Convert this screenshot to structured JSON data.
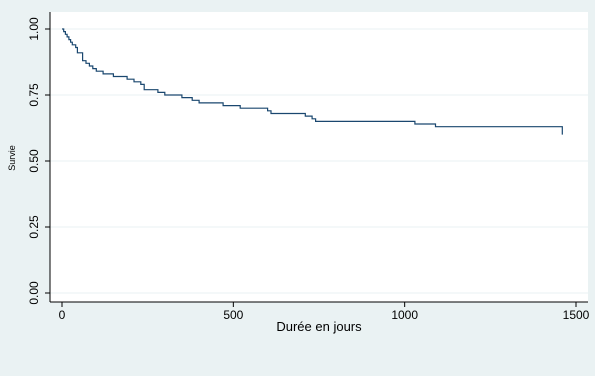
{
  "chart_data": {
    "type": "line",
    "title": "",
    "xlabel": "Durée en jours",
    "ylabel": "Survie",
    "xlim": [
      0,
      1500
    ],
    "ylim": [
      0,
      1
    ],
    "x_ticks": [
      0,
      500,
      1000,
      1500
    ],
    "x_tick_labels": [
      "0",
      "500",
      "1000",
      "1500"
    ],
    "y_ticks": [
      0,
      0.25,
      0.5,
      0.75,
      1
    ],
    "y_tick_labels": [
      "0.00",
      "0.25",
      "0.50",
      "0.75",
      "1.00"
    ],
    "grid": true,
    "legend": "none",
    "line_color": "#1a476f",
    "series": [
      {
        "step": true,
        "x": [
          0,
          5,
          10,
          15,
          20,
          25,
          30,
          40,
          45,
          60,
          70,
          80,
          90,
          100,
          120,
          140,
          150,
          190,
          210,
          230,
          240,
          280,
          300,
          340,
          350,
          380,
          400,
          460,
          470,
          510,
          520,
          600,
          610,
          700,
          710,
          730,
          740,
          1020,
          1030,
          1080,
          1090,
          1460
        ],
        "y": [
          1.0,
          0.99,
          0.98,
          0.97,
          0.96,
          0.95,
          0.94,
          0.93,
          0.91,
          0.88,
          0.87,
          0.86,
          0.85,
          0.84,
          0.83,
          0.83,
          0.82,
          0.81,
          0.8,
          0.79,
          0.77,
          0.76,
          0.75,
          0.75,
          0.74,
          0.73,
          0.72,
          0.72,
          0.71,
          0.71,
          0.7,
          0.69,
          0.68,
          0.68,
          0.67,
          0.66,
          0.65,
          0.65,
          0.64,
          0.64,
          0.63,
          0.6
        ]
      }
    ]
  }
}
